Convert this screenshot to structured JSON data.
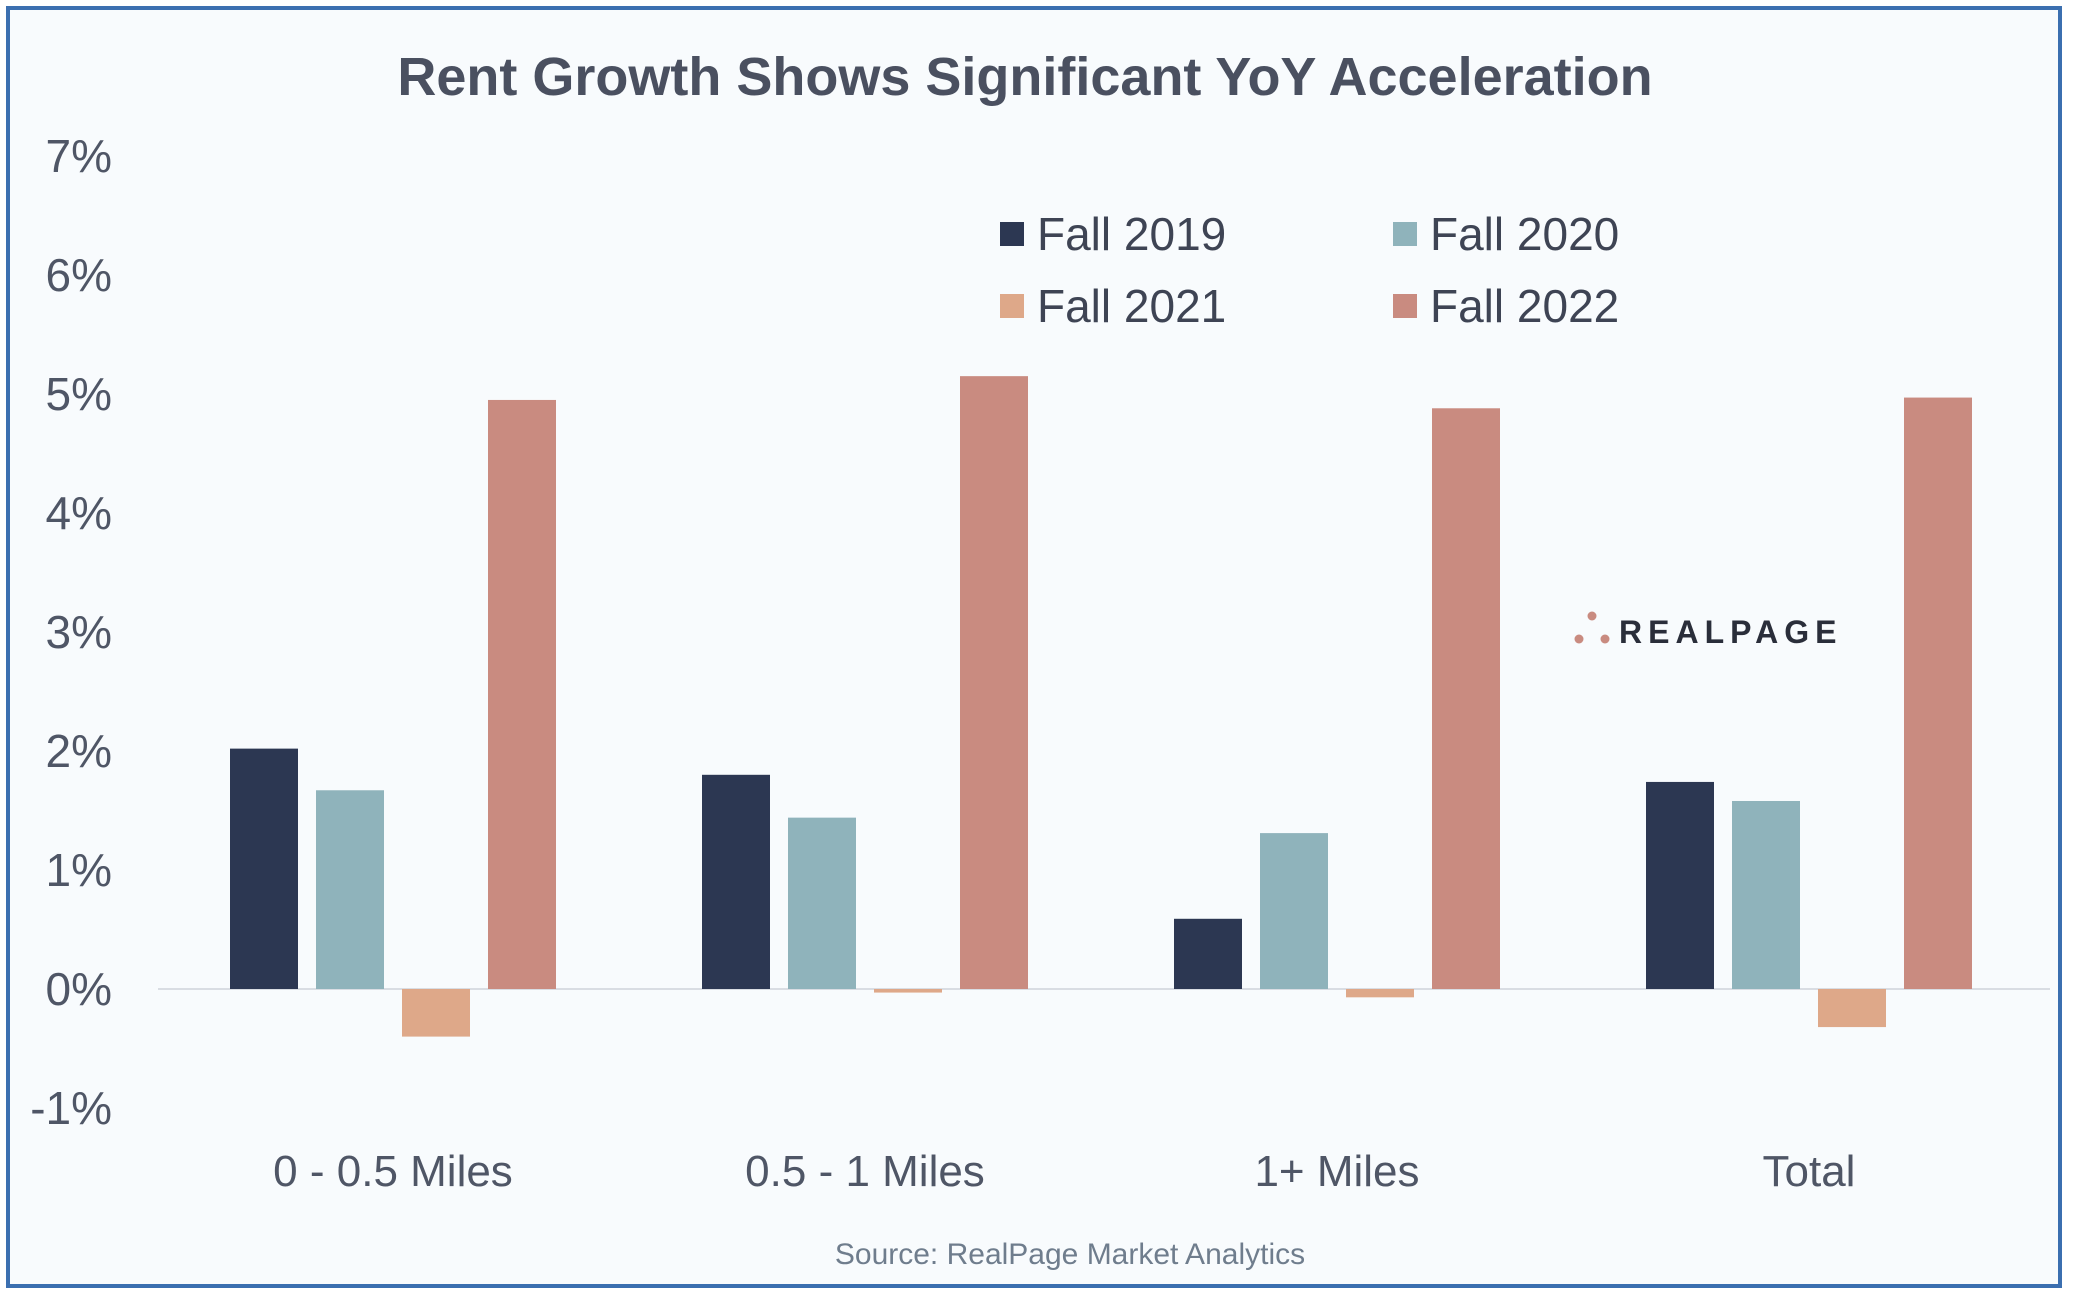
{
  "chart_data": {
    "type": "bar",
    "title": "Rent Growth Shows Significant YoY Acceleration",
    "categories": [
      "0 - 0.5 Miles",
      "0.5 - 1 Miles",
      "1+ Miles",
      "Total"
    ],
    "series": [
      {
        "name": "Fall 2019",
        "color": "#2c3752",
        "values": [
          2.02,
          1.8,
          0.59,
          1.74
        ]
      },
      {
        "name": "Fall 2020",
        "color": "#8fb3bb",
        "values": [
          1.67,
          1.44,
          1.31,
          1.58
        ]
      },
      {
        "name": "Fall 2021",
        "color": "#dea889",
        "values": [
          -0.4,
          -0.03,
          -0.07,
          -0.32
        ]
      },
      {
        "name": "Fall 2022",
        "color": "#c98b80",
        "values": [
          4.95,
          5.15,
          4.88,
          4.97
        ]
      }
    ],
    "yticks": [
      "7%",
      "6%",
      "5%",
      "4%",
      "3%",
      "2%",
      "1%",
      "0%",
      "-1%"
    ],
    "ylim": [
      -1,
      7
    ],
    "xlabel": "",
    "ylabel": "",
    "grid": false,
    "legend_position": "top-center"
  },
  "source": "Source: RealPage Market Analytics",
  "logo": {
    "text": "REALPAGE",
    "icon": "realpage-dots-icon"
  }
}
